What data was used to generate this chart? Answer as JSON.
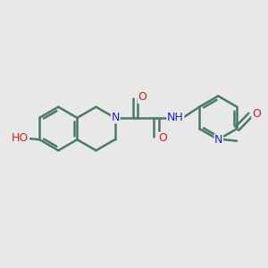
{
  "bg_color": "#e8e8e8",
  "bond_color": "#4a7a6a",
  "bond_width": 1.8,
  "atom_colors": {
    "N": "#2020cc",
    "O": "#cc2020",
    "C": "#4a7a6a"
  },
  "font_size": 9,
  "fig_bg": "#e8e8e8"
}
